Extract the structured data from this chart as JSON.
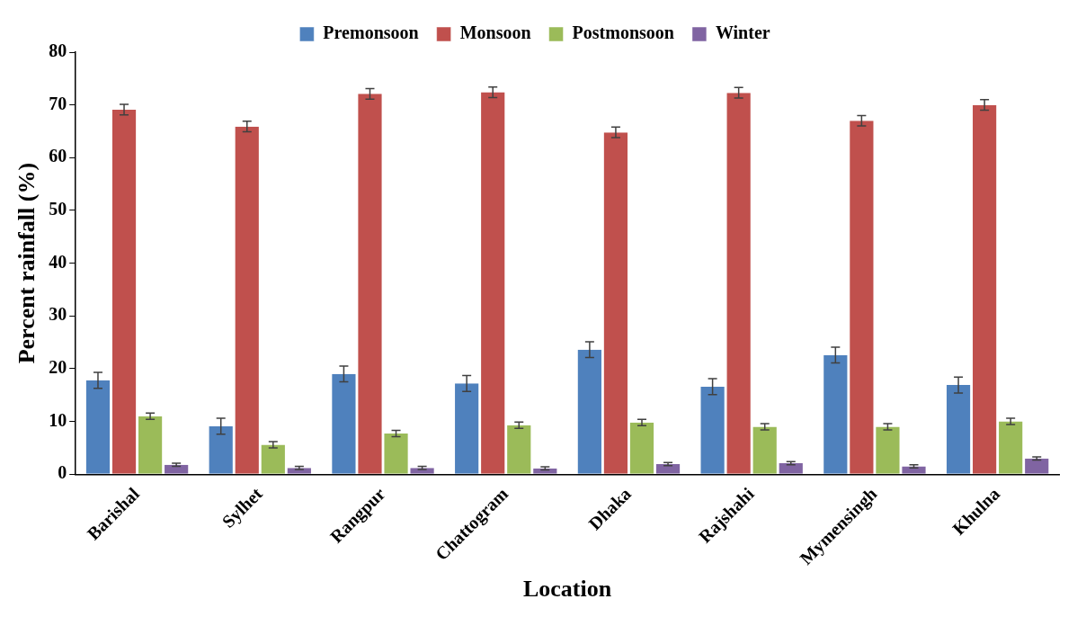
{
  "chart_data": {
    "type": "bar",
    "xlabel": "Location",
    "ylabel": "Percent rainfall (%)",
    "categories": [
      "Barishal",
      "Sylhet",
      "Rangpur",
      "Chattogram",
      "Dhaka",
      "Rajshahi",
      "Mymensingh",
      "Khulna"
    ],
    "series": [
      {
        "name": "Premonsoon",
        "color": "#4f81bd",
        "values": [
          17.8,
          9.1,
          19.0,
          17.2,
          23.6,
          16.6,
          22.6,
          16.9
        ],
        "errors": [
          1.5,
          1.5,
          1.5,
          1.5,
          1.5,
          1.5,
          1.5,
          1.5
        ]
      },
      {
        "name": "Monsoon",
        "color": "#c0504d",
        "values": [
          69.1,
          65.9,
          72.1,
          72.4,
          64.8,
          72.3,
          67.0,
          70.0
        ],
        "errors": [
          1.0,
          1.0,
          1.0,
          1.0,
          1.0,
          1.0,
          1.0,
          1.0
        ]
      },
      {
        "name": "Postmonsoon",
        "color": "#9bbb59",
        "values": [
          11.0,
          5.6,
          7.7,
          9.3,
          9.8,
          9.0,
          9.0,
          10.0
        ],
        "errors": [
          0.6,
          0.6,
          0.6,
          0.6,
          0.6,
          0.6,
          0.6,
          0.6
        ]
      },
      {
        "name": "Winter",
        "color": "#8064a2",
        "values": [
          1.8,
          1.2,
          1.2,
          1.1,
          1.9,
          2.1,
          1.5,
          3.0
        ],
        "errors": [
          0.3,
          0.3,
          0.3,
          0.3,
          0.3,
          0.3,
          0.3,
          0.3
        ]
      }
    ],
    "ylim": [
      0,
      80
    ],
    "yticks": [
      0,
      10,
      20,
      30,
      40,
      50,
      60,
      70,
      80
    ],
    "grid": false,
    "legend": "top"
  }
}
